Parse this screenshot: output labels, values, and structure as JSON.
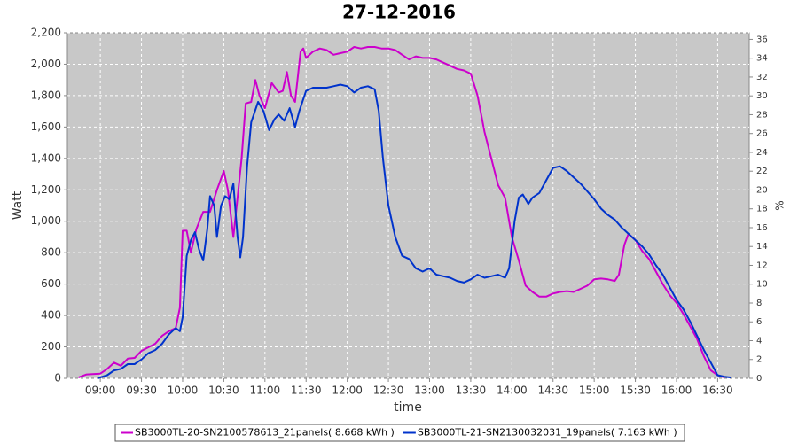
{
  "chart_data": {
    "type": "line",
    "title": "27-12-2016",
    "x_label": "time",
    "y_label": "Watt",
    "y2_label": "%",
    "xlim": [
      "08:36",
      "16:53"
    ],
    "xticks": [
      "09:00",
      "09:30",
      "10:00",
      "10:30",
      "11:00",
      "11:30",
      "12:00",
      "12:30",
      "13:00",
      "13:30",
      "14:00",
      "14:30",
      "15:00",
      "15:30",
      "16:00",
      "16:30"
    ],
    "ylim": [
      0,
      2200
    ],
    "yticks": [
      0,
      200,
      400,
      600,
      800,
      {
        "value": 1000,
        "label": "1,000"
      },
      {
        "value": 1200,
        "label": "1,200"
      },
      {
        "value": 1400,
        "label": "1,400"
      },
      {
        "value": 1600,
        "label": "1,600"
      },
      {
        "value": 1800,
        "label": "1,800"
      },
      {
        "value": 2000,
        "label": "2,000"
      },
      {
        "value": 2200,
        "label": "2,200"
      }
    ],
    "y2lim": [
      0,
      36.7
    ],
    "y2ticks": [
      0,
      2,
      4,
      6,
      8,
      10,
      12,
      14,
      16,
      18,
      20,
      22,
      24,
      26,
      28,
      30,
      32,
      34,
      36
    ],
    "grid": true,
    "legend": "bottom",
    "series": [
      {
        "name": "SB3000TL-20-SN2100578613_21panels( 8.668 kWh )",
        "color": "#cc00cc",
        "x": [
          "08:44",
          "08:50",
          "09:00",
          "09:05",
          "09:10",
          "09:15",
          "09:20",
          "09:25",
          "09:30",
          "09:40",
          "09:45",
          "09:50",
          "09:55",
          "09:58",
          "10:00",
          "10:03",
          "10:06",
          "10:10",
          "10:15",
          "10:20",
          "10:25",
          "10:30",
          "10:33",
          "10:37",
          "10:40",
          "10:43",
          "10:46",
          "10:50",
          "10:53",
          "10:56",
          "11:00",
          "11:05",
          "11:10",
          "11:13",
          "11:16",
          "11:19",
          "11:22",
          "11:26",
          "11:28",
          "11:30",
          "11:35",
          "11:40",
          "11:45",
          "11:50",
          "11:55",
          "12:00",
          "12:05",
          "12:10",
          "12:15",
          "12:20",
          "12:25",
          "12:30",
          "12:35",
          "12:40",
          "12:45",
          "12:50",
          "12:55",
          "13:00",
          "13:05",
          "13:10",
          "13:15",
          "13:20",
          "13:25",
          "13:30",
          "13:35",
          "13:40",
          "13:45",
          "13:50",
          "13:55",
          "14:00",
          "14:05",
          "14:10",
          "14:15",
          "14:20",
          "14:25",
          "14:30",
          "14:35",
          "14:40",
          "14:45",
          "14:50",
          "14:55",
          "15:00",
          "15:05",
          "15:10",
          "15:15",
          "15:18",
          "15:22",
          "15:25",
          "15:30",
          "15:35",
          "15:40",
          "15:45",
          "15:50",
          "15:55",
          "16:00",
          "16:05",
          "16:10",
          "16:15",
          "16:20",
          "16:25",
          "16:30",
          "16:35"
        ],
        "values": [
          5,
          25,
          30,
          60,
          100,
          80,
          125,
          130,
          175,
          220,
          270,
          300,
          320,
          450,
          940,
          940,
          800,
          950,
          1060,
          1060,
          1200,
          1320,
          1200,
          900,
          1150,
          1400,
          1750,
          1760,
          1900,
          1800,
          1720,
          1880,
          1820,
          1830,
          1950,
          1800,
          1760,
          2080,
          2100,
          2040,
          2080,
          2100,
          2090,
          2060,
          2070,
          2080,
          2110,
          2100,
          2110,
          2110,
          2100,
          2100,
          2090,
          2060,
          2030,
          2050,
          2040,
          2040,
          2030,
          2010,
          1990,
          1970,
          1960,
          1940,
          1800,
          1570,
          1400,
          1230,
          1150,
          900,
          750,
          590,
          550,
          520,
          520,
          540,
          550,
          555,
          550,
          570,
          590,
          630,
          635,
          630,
          620,
          660,
          850,
          920,
          880,
          810,
          760,
          680,
          600,
          530,
          480,
          410,
          330,
          250,
          140,
          50,
          20,
          5
        ]
      },
      {
        "name": "SB3000TL-21-SN2130032031_19panels( 7.163 kWh )",
        "color": "#0033cc",
        "x": [
          "08:58",
          "09:05",
          "09:10",
          "09:15",
          "09:20",
          "09:25",
          "09:30",
          "09:35",
          "09:40",
          "09:45",
          "09:50",
          "09:55",
          "09:58",
          "10:00",
          "10:03",
          "10:06",
          "10:09",
          "10:12",
          "10:15",
          "10:18",
          "10:20",
          "10:23",
          "10:25",
          "10:28",
          "10:31",
          "10:34",
          "10:37",
          "10:40",
          "10:42",
          "10:44",
          "10:47",
          "10:50",
          "10:55",
          "10:59",
          "11:03",
          "11:07",
          "11:10",
          "11:14",
          "11:18",
          "11:22",
          "11:25",
          "11:30",
          "11:35",
          "11:45",
          "11:50",
          "11:55",
          "12:00",
          "12:05",
          "12:10",
          "12:15",
          "12:20",
          "12:23",
          "12:26",
          "12:30",
          "12:35",
          "12:40",
          "12:45",
          "12:50",
          "12:55",
          "13:00",
          "13:05",
          "13:10",
          "13:15",
          "13:20",
          "13:25",
          "13:30",
          "13:35",
          "13:40",
          "13:45",
          "13:50",
          "13:55",
          "13:58",
          "14:02",
          "14:05",
          "14:08",
          "14:12",
          "14:15",
          "14:20",
          "14:25",
          "14:30",
          "14:35",
          "14:40",
          "14:45",
          "14:50",
          "14:55",
          "15:00",
          "15:05",
          "15:10",
          "15:15",
          "15:20",
          "15:25",
          "15:30",
          "15:35",
          "15:40",
          "15:45",
          "15:50",
          "15:55",
          "16:00",
          "16:05",
          "16:10",
          "16:15",
          "16:20",
          "16:25",
          "16:30",
          "16:35",
          "16:40"
        ],
        "values": [
          0,
          20,
          50,
          60,
          90,
          90,
          120,
          160,
          180,
          220,
          280,
          320,
          300,
          390,
          780,
          880,
          930,
          820,
          750,
          950,
          1160,
          1100,
          900,
          1100,
          1160,
          1140,
          1240,
          900,
          770,
          900,
          1350,
          1630,
          1760,
          1700,
          1580,
          1650,
          1680,
          1640,
          1720,
          1600,
          1700,
          1830,
          1850,
          1850,
          1860,
          1870,
          1860,
          1820,
          1850,
          1860,
          1840,
          1700,
          1400,
          1100,
          900,
          780,
          760,
          700,
          680,
          700,
          660,
          650,
          640,
          620,
          610,
          630,
          660,
          640,
          650,
          660,
          640,
          700,
          1000,
          1150,
          1170,
          1110,
          1150,
          1180,
          1260,
          1340,
          1350,
          1320,
          1280,
          1240,
          1190,
          1140,
          1080,
          1040,
          1010,
          960,
          920,
          880,
          840,
          790,
          720,
          660,
          580,
          500,
          440,
          360,
          270,
          180,
          100,
          20,
          10,
          5
        ]
      }
    ]
  }
}
